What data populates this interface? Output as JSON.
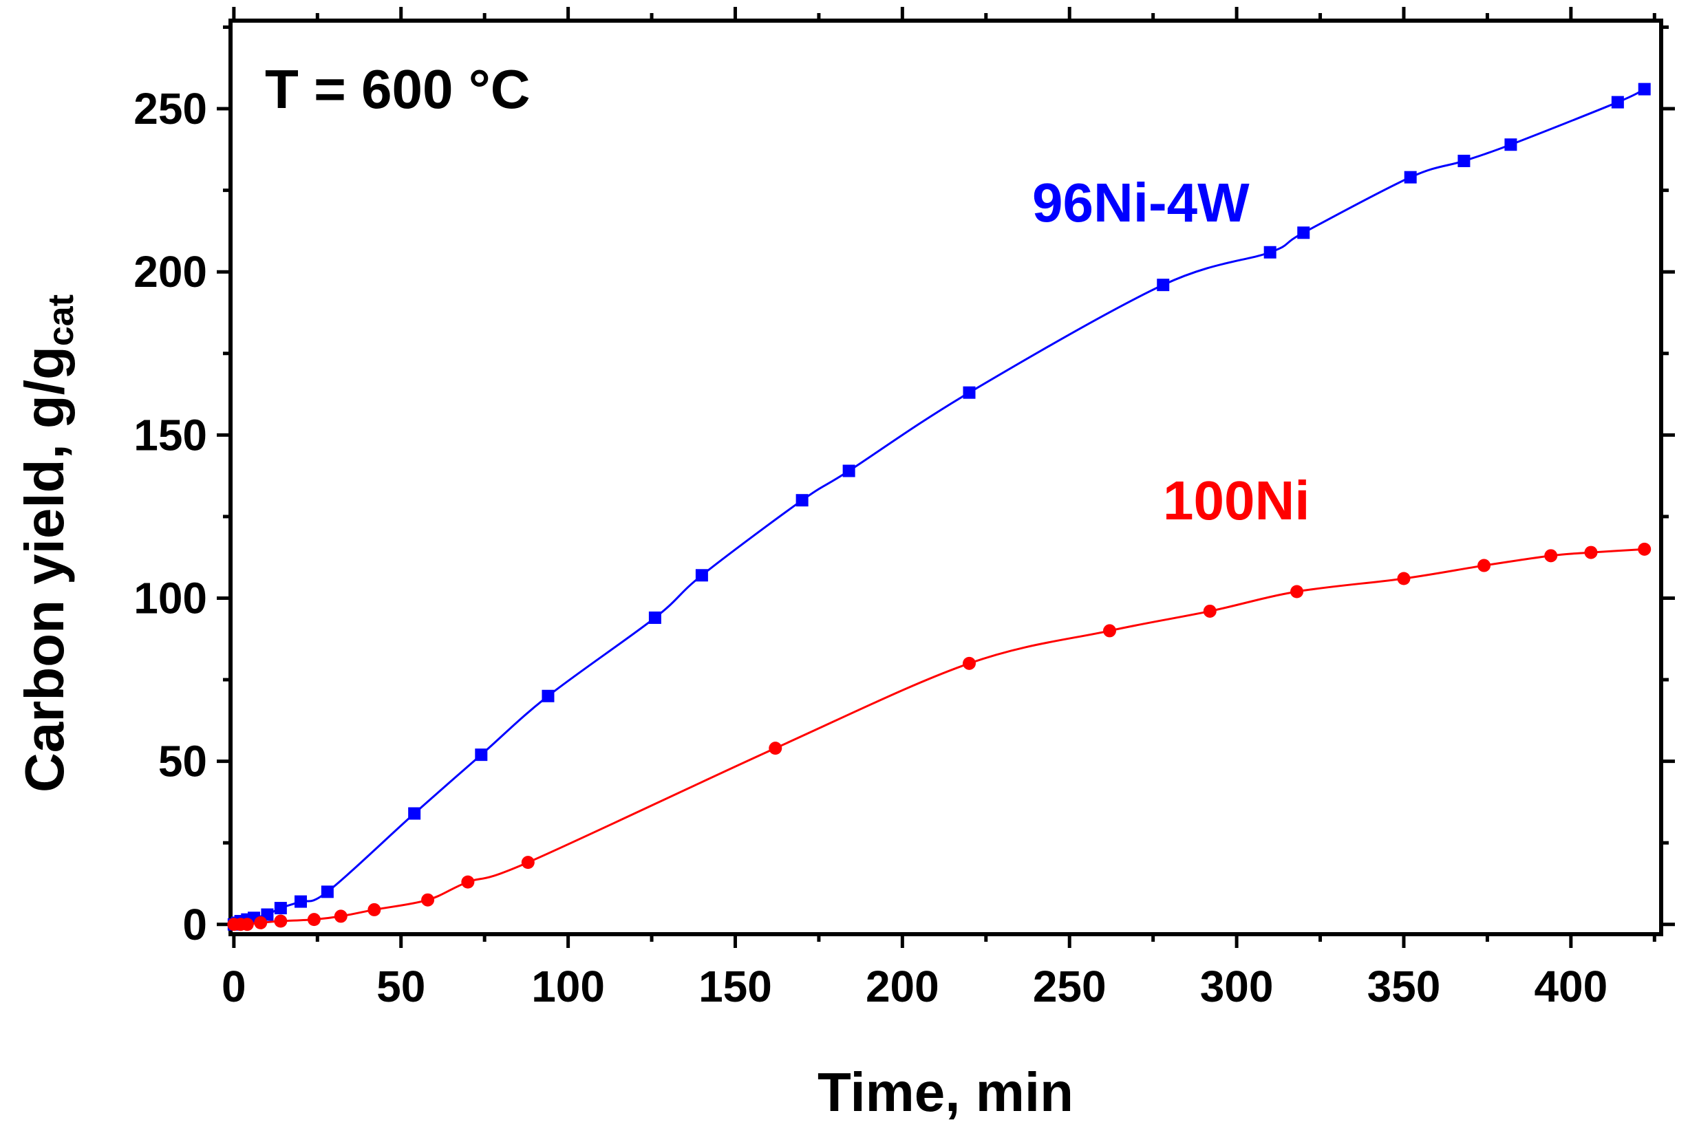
{
  "chart_data": {
    "type": "line",
    "title": "",
    "xlabel": "Time, min",
    "ylabel": "Carbon yield, g/g",
    "ylabel_subscript": "cat",
    "xlim": [
      -1,
      427
    ],
    "ylim": [
      -3,
      277
    ],
    "xticks": [
      0,
      50,
      100,
      150,
      200,
      250,
      300,
      350,
      400
    ],
    "yticks": [
      0,
      50,
      100,
      150,
      200,
      250
    ],
    "grid": false,
    "annotations": [
      {
        "text": "T = 600 °C",
        "position": "top-left"
      }
    ],
    "series": [
      {
        "name": "96Ni-4W",
        "color": "#0000ff",
        "marker": "square",
        "x": [
          0,
          1,
          2,
          4,
          6,
          10,
          14,
          20,
          28,
          54,
          74,
          94,
          126,
          140,
          170,
          184,
          220,
          278,
          310,
          320,
          352,
          368,
          382,
          414,
          422
        ],
        "y": [
          0,
          0.5,
          1,
          1.5,
          2,
          3,
          5,
          7,
          10,
          34,
          52,
          70,
          94,
          107,
          130,
          139,
          163,
          196,
          206,
          212,
          229,
          234,
          239,
          252,
          256
        ]
      },
      {
        "name": "100Ni",
        "color": "#ff0000",
        "marker": "circle",
        "x": [
          0,
          2,
          4,
          8,
          14,
          24,
          32,
          42,
          58,
          70,
          88,
          162,
          220,
          262,
          292,
          318,
          350,
          374,
          394,
          406,
          422
        ],
        "y": [
          0,
          0,
          0,
          0.5,
          1,
          1.5,
          2.5,
          4.5,
          7.5,
          13,
          19,
          54,
          80,
          90,
          96,
          102,
          106,
          110,
          113,
          114,
          115
        ]
      }
    ]
  }
}
